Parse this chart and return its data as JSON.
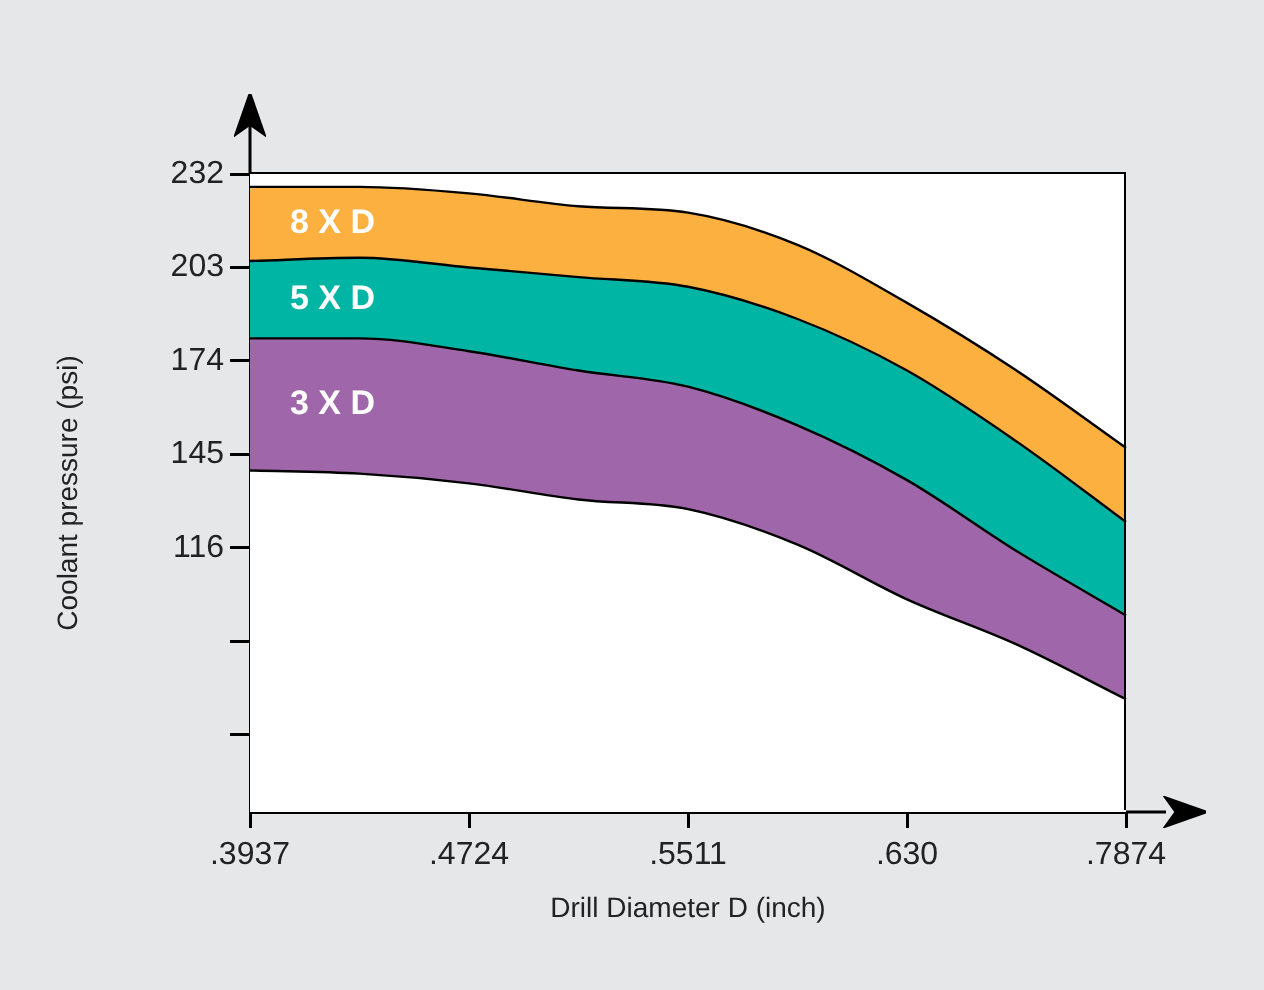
{
  "chart_data": {
    "type": "area",
    "xlabel": "Drill Diameter D (inch)",
    "ylabel": "Coolant pressure (psi)",
    "categories": [
      ".3937",
      null,
      ".4724",
      null,
      ".5511",
      null,
      ".630",
      null,
      ".7874"
    ],
    "ylim": [
      34,
      232
    ],
    "yticks": [
      {
        "value": 58,
        "label": null
      },
      {
        "value": 87,
        "label": null
      },
      116,
      145,
      174,
      203,
      232
    ],
    "grid": false,
    "legend": false,
    "marker": "none",
    "series": [
      {
        "color": "#ffffff",
        "values": [
          140,
          139,
          136,
          131,
          128,
          117,
          100,
          86,
          69
        ]
      },
      {
        "name": "3 X D",
        "color": "#a066aa",
        "values": [
          181,
          181,
          177,
          171,
          166,
          154,
          137,
          115,
          95
        ]
      },
      {
        "name": "5 X D",
        "color": "#00b5a3",
        "values": [
          205,
          206,
          203,
          200,
          197,
          187,
          171,
          149,
          124
        ]
      },
      {
        "name": "8 X D",
        "color": "#fbb040",
        "values": [
          228,
          228,
          226,
          222,
          220,
          210,
          192,
          171,
          147
        ]
      }
    ]
  }
}
